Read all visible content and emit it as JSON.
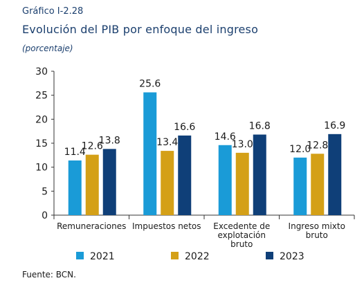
{
  "header": {
    "figure_label": "Gráfico I-2.28",
    "title": "Evolución del PIB por enfoque del ingreso",
    "subtitle": "(porcentaje)"
  },
  "footer": {
    "source": "Fuente: BCN."
  },
  "chart_data": {
    "type": "bar",
    "title": "Evolución del PIB por enfoque del ingreso",
    "ylabel": "",
    "xlabel": "",
    "ylim": [
      0,
      30
    ],
    "yticks": [
      0,
      5,
      10,
      15,
      20,
      25,
      30
    ],
    "grid": false,
    "legend": "bottom",
    "categories": [
      [
        "Remuneraciones"
      ],
      [
        "Impuestos netos"
      ],
      [
        "Excedente de",
        "explotación",
        "bruto"
      ],
      [
        "Ingreso mixto",
        "bruto"
      ]
    ],
    "series": [
      {
        "name": "2021",
        "color": "#1a9bd7",
        "values": [
          11.4,
          25.6,
          14.6,
          12.0
        ]
      },
      {
        "name": "2022",
        "color": "#d4a017",
        "values": [
          12.6,
          13.4,
          13.0,
          12.8
        ]
      },
      {
        "name": "2023",
        "color": "#0f3f78",
        "values": [
          13.8,
          16.6,
          16.8,
          16.9
        ]
      }
    ],
    "data_labels": [
      [
        "11.4",
        "25.6",
        "14.6",
        "12.0"
      ],
      [
        "12.6",
        "13.4",
        "13.0",
        "12.8"
      ],
      [
        "13.8",
        "16.6",
        "16.8",
        "16.9"
      ]
    ]
  }
}
